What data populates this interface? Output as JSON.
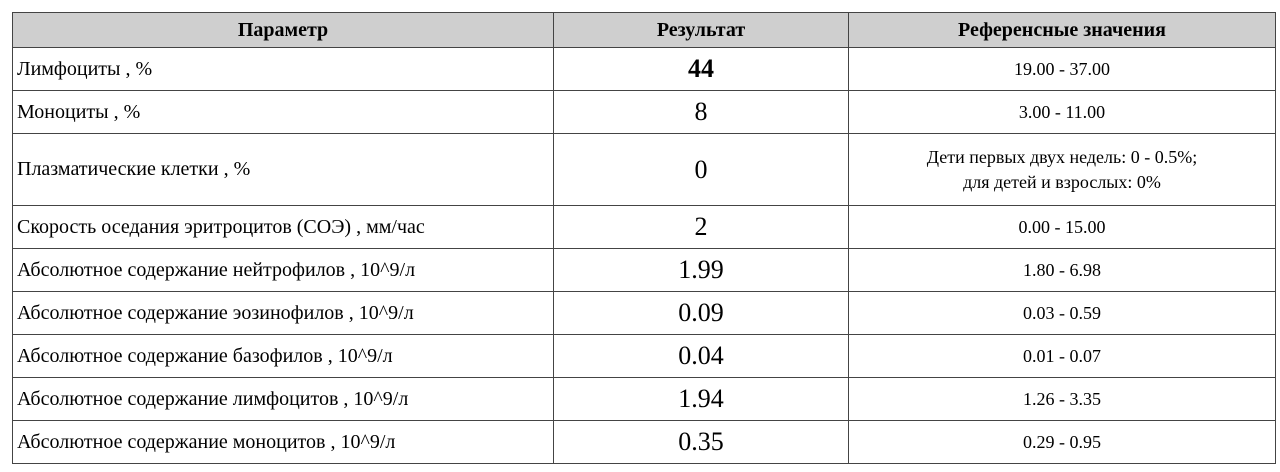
{
  "table": {
    "header": [
      "Параметр",
      "Результат",
      "Референсные значения"
    ],
    "rows": [
      [
        "Лимфоциты , %",
        "44",
        [
          "19.00 - 37.00"
        ]
      ],
      [
        "Моноциты , %",
        "8",
        [
          "3.00 - 11.00"
        ]
      ],
      [
        "Плазматические клетки , %",
        "0",
        [
          "Дети первых двух недель: 0 - 0.5%;",
          "для детей и взрослых: 0%"
        ]
      ],
      [
        "Скорость оседания эритроцитов (СОЭ) , мм/час",
        "2",
        [
          "0.00 - 15.00"
        ]
      ],
      [
        "Абсолютное содержание нейтрофилов , 10^9/л",
        "1.99",
        [
          "1.80 - 6.98"
        ]
      ],
      [
        "Абсолютное содержание эозинофилов , 10^9/л",
        "0.09",
        [
          "0.03 - 0.59"
        ]
      ],
      [
        "Абсолютное содержание базофилов , 10^9/л",
        "0.04",
        [
          "0.01 - 0.07"
        ]
      ],
      [
        "Абсолютное содержание лимфоцитов , 10^9/л",
        "1.94",
        [
          "1.26 - 3.35"
        ]
      ],
      [
        "Абсолютное содержание моноцитов , 10^9/л",
        "0.35",
        [
          "0.29 - 0.95"
        ]
      ]
    ]
  }
}
